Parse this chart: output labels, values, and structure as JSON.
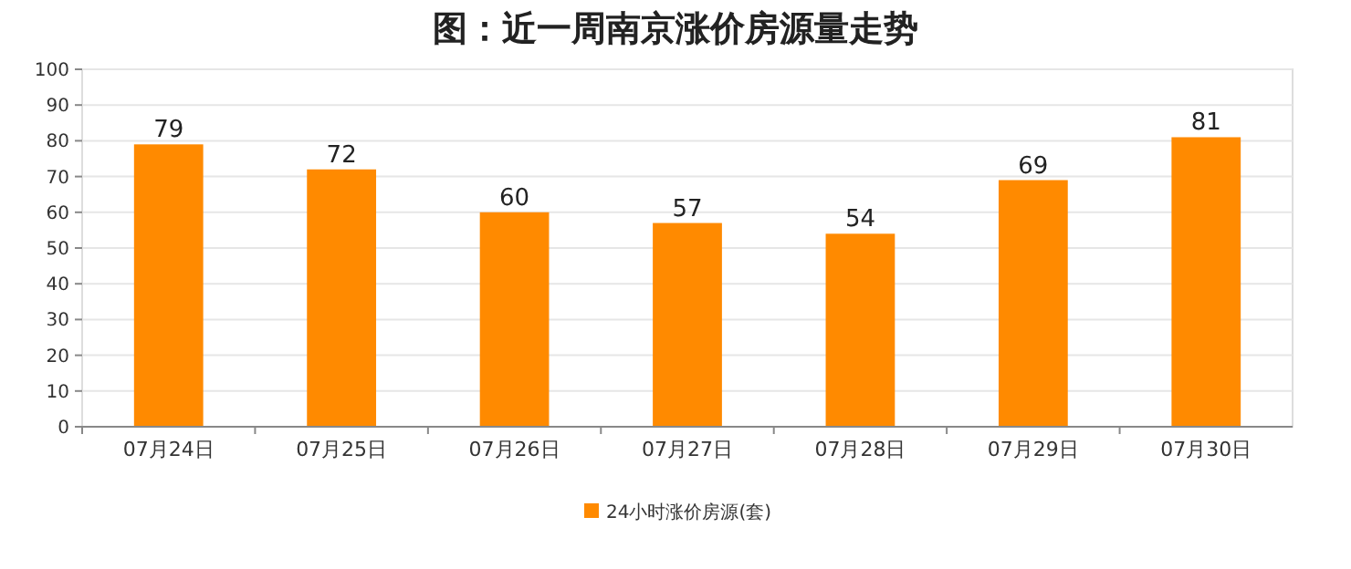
{
  "chart_data": {
    "type": "bar",
    "title": "图：近一周南京涨价房源量走势",
    "categories": [
      "07月24日",
      "07月25日",
      "07月26日",
      "07月27日",
      "07月28日",
      "07月29日",
      "07月30日"
    ],
    "series": [
      {
        "name": "24小时涨价房源(套)",
        "color": "#ff8a00",
        "values": [
          79,
          72,
          60,
          57,
          54,
          69,
          81
        ]
      }
    ],
    "ylim": [
      0,
      100
    ],
    "yticks": [
      0,
      10,
      20,
      30,
      40,
      50,
      60,
      70,
      80,
      90,
      100
    ],
    "grid": "y",
    "data_labels": true,
    "legend": "bottom"
  }
}
